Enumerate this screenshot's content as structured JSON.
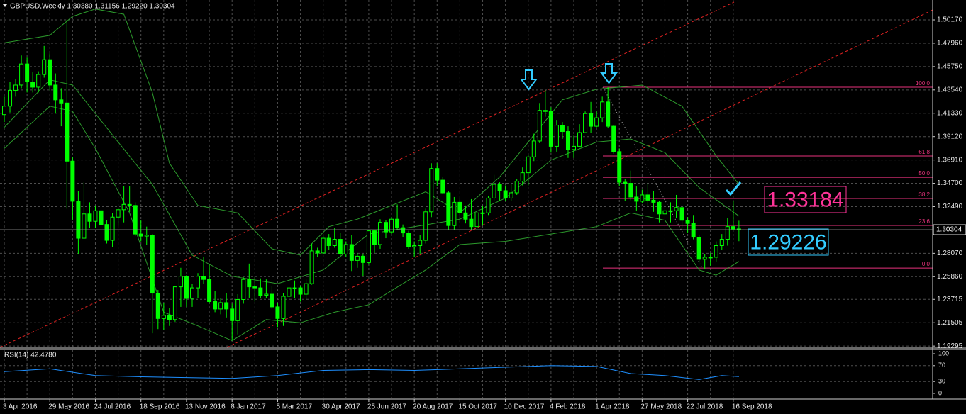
{
  "chart_data": {
    "type": "candlestick",
    "title": "GBPUSD,Weekly  1.30380 1.31156 1.29220 1.30304",
    "categories": [
      "3 Apr 2016",
      null,
      null,
      null,
      null,
      null,
      null,
      null,
      "29 May 2016",
      null,
      null,
      null,
      null,
      null,
      null,
      null,
      "24 Jul 2016",
      null,
      null,
      null,
      null,
      null,
      null,
      null,
      "18 Sep 2016",
      null,
      null,
      null,
      null,
      null,
      null,
      null,
      "13 Nov 2016",
      null,
      null,
      null,
      null,
      null,
      null,
      null,
      "8 Jan 2017",
      null,
      null,
      null,
      null,
      null,
      null,
      null,
      "5 Mar 2017",
      null,
      null,
      null,
      null,
      null,
      null,
      null,
      "30 Apr 2017",
      null,
      null,
      null,
      null,
      null,
      null,
      null,
      "25 Jun 2017",
      null,
      null,
      null,
      null,
      null,
      null,
      null,
      "20 Aug 2017",
      null,
      null,
      null,
      null,
      null,
      null,
      null,
      "15 Oct 2017",
      null,
      null,
      null,
      null,
      null,
      null,
      null,
      "10 Dec 2017",
      null,
      null,
      null,
      null,
      null,
      null,
      null,
      "4 Feb 2018",
      null,
      null,
      null,
      null,
      null,
      null,
      null,
      "1 Apr 2018",
      null,
      null,
      null,
      null,
      null,
      null,
      null,
      "27 May 2018",
      null,
      null,
      null,
      null,
      null,
      null,
      null,
      "22 Jul 2018",
      null,
      null,
      null,
      null,
      null,
      null,
      null,
      "16 Sep 2018",
      null
    ],
    "open": [
      1.412,
      1.42,
      1.435,
      1.44,
      1.46,
      1.443,
      1.438,
      1.45,
      1.464,
      1.44,
      1.426,
      1.423,
      1.368,
      1.33,
      1.295,
      1.318,
      1.311,
      1.321,
      1.308,
      1.293,
      1.315,
      1.322,
      1.327,
      1.326,
      1.299,
      1.297,
      1.298,
      1.243,
      1.219,
      1.222,
      1.218,
      1.249,
      1.259,
      1.238,
      1.248,
      1.259,
      1.256,
      1.235,
      1.228,
      1.234,
      1.228,
      1.217,
      1.237,
      1.256,
      1.249,
      1.248,
      1.241,
      1.242,
      1.23,
      1.219,
      1.24,
      1.248,
      1.248,
      1.242,
      1.252,
      1.283,
      1.281,
      1.295,
      1.288,
      1.294,
      1.28,
      1.289,
      1.274,
      1.278,
      1.272,
      1.302,
      1.289,
      1.31,
      1.301,
      1.313,
      1.305,
      1.3,
      1.287,
      1.288,
      1.293,
      1.32,
      1.361,
      1.35,
      1.338,
      1.307,
      1.329,
      1.319,
      1.313,
      1.306,
      1.319,
      1.319,
      1.333,
      1.346,
      1.34,
      1.333,
      1.338,
      1.349,
      1.357,
      1.372,
      1.387,
      1.416,
      1.415,
      1.382,
      1.402,
      1.396,
      1.379,
      1.382,
      1.395,
      1.413,
      1.401,
      1.409,
      1.424,
      1.401,
      1.377,
      1.348,
      1.347,
      1.334,
      1.33,
      1.336,
      1.331,
      1.329,
      1.318,
      1.321,
      1.321,
      1.324,
      1.312,
      1.309,
      1.296,
      1.275,
      1.277,
      1.277,
      1.288,
      1.294,
      1.306,
      1.3038
    ],
    "high": [
      1.429,
      1.443,
      1.446,
      1.468,
      1.466,
      1.452,
      1.453,
      1.477,
      1.47,
      1.451,
      1.437,
      1.502,
      1.372,
      1.34,
      1.348,
      1.329,
      1.326,
      1.337,
      1.312,
      1.319,
      1.324,
      1.344,
      1.344,
      1.329,
      1.312,
      1.306,
      1.299,
      1.246,
      1.234,
      1.229,
      1.25,
      1.267,
      1.26,
      1.252,
      1.262,
      1.277,
      1.27,
      1.245,
      1.238,
      1.243,
      1.233,
      1.242,
      1.258,
      1.271,
      1.258,
      1.257,
      1.256,
      1.25,
      1.234,
      1.243,
      1.252,
      1.255,
      1.25,
      1.256,
      1.29,
      1.286,
      1.297,
      1.299,
      1.305,
      1.3,
      1.292,
      1.298,
      1.281,
      1.28,
      1.303,
      1.303,
      1.313,
      1.312,
      1.315,
      1.327,
      1.308,
      1.302,
      1.292,
      1.298,
      1.323,
      1.366,
      1.366,
      1.353,
      1.34,
      1.334,
      1.333,
      1.326,
      1.332,
      1.322,
      1.326,
      1.335,
      1.355,
      1.348,
      1.345,
      1.346,
      1.351,
      1.362,
      1.374,
      1.394,
      1.423,
      1.435,
      1.419,
      1.407,
      1.405,
      1.401,
      1.392,
      1.403,
      1.415,
      1.424,
      1.415,
      1.429,
      1.438,
      1.402,
      1.38,
      1.351,
      1.359,
      1.344,
      1.341,
      1.347,
      1.34,
      1.33,
      1.326,
      1.329,
      1.336,
      1.326,
      1.315,
      1.317,
      1.298,
      1.28,
      1.281,
      1.292,
      1.299,
      1.314,
      1.33,
      1.31156
    ],
    "low": [
      1.405,
      1.414,
      1.429,
      1.437,
      1.433,
      1.433,
      1.433,
      1.447,
      1.435,
      1.413,
      1.401,
      1.323,
      1.312,
      1.28,
      1.295,
      1.305,
      1.305,
      1.305,
      1.29,
      1.287,
      1.307,
      1.31,
      1.32,
      1.297,
      1.292,
      1.289,
      1.205,
      1.209,
      1.208,
      1.212,
      1.216,
      1.23,
      1.23,
      1.23,
      1.238,
      1.252,
      1.233,
      1.225,
      1.223,
      1.22,
      1.199,
      1.204,
      1.233,
      1.238,
      1.235,
      1.238,
      1.238,
      1.228,
      1.211,
      1.212,
      1.236,
      1.238,
      1.235,
      1.237,
      1.251,
      1.277,
      1.28,
      1.284,
      1.286,
      1.277,
      1.277,
      1.264,
      1.267,
      1.259,
      1.27,
      1.281,
      1.285,
      1.295,
      1.299,
      1.303,
      1.296,
      1.285,
      1.277,
      1.28,
      1.29,
      1.315,
      1.344,
      1.337,
      1.303,
      1.303,
      1.31,
      1.309,
      1.303,
      1.304,
      1.307,
      1.317,
      1.33,
      1.33,
      1.33,
      1.33,
      1.336,
      1.345,
      1.345,
      1.368,
      1.385,
      1.41,
      1.376,
      1.377,
      1.389,
      1.371,
      1.371,
      1.381,
      1.395,
      1.395,
      1.4,
      1.405,
      1.399,
      1.375,
      1.344,
      1.33,
      1.331,
      1.321,
      1.328,
      1.326,
      1.32,
      1.31,
      1.315,
      1.31,
      1.314,
      1.305,
      1.3,
      1.294,
      1.272,
      1.266,
      1.269,
      1.273,
      1.284,
      1.288,
      1.303,
      1.2922
    ],
    "close": [
      1.42,
      1.435,
      1.44,
      1.46,
      1.443,
      1.438,
      1.45,
      1.464,
      1.44,
      1.426,
      1.423,
      1.368,
      1.33,
      1.295,
      1.318,
      1.311,
      1.321,
      1.308,
      1.293,
      1.315,
      1.322,
      1.327,
      1.326,
      1.299,
      1.297,
      1.298,
      1.243,
      1.219,
      1.222,
      1.218,
      1.249,
      1.259,
      1.238,
      1.248,
      1.259,
      1.256,
      1.235,
      1.228,
      1.234,
      1.228,
      1.217,
      1.237,
      1.256,
      1.249,
      1.248,
      1.241,
      1.242,
      1.23,
      1.219,
      1.24,
      1.248,
      1.248,
      1.242,
      1.252,
      1.283,
      1.281,
      1.295,
      1.288,
      1.294,
      1.28,
      1.289,
      1.274,
      1.278,
      1.272,
      1.302,
      1.289,
      1.31,
      1.301,
      1.313,
      1.305,
      1.3,
      1.287,
      1.288,
      1.293,
      1.32,
      1.361,
      1.35,
      1.338,
      1.307,
      1.329,
      1.319,
      1.313,
      1.306,
      1.319,
      1.319,
      1.333,
      1.346,
      1.34,
      1.333,
      1.338,
      1.349,
      1.357,
      1.372,
      1.387,
      1.416,
      1.415,
      1.382,
      1.402,
      1.396,
      1.379,
      1.382,
      1.395,
      1.413,
      1.401,
      1.409,
      1.424,
      1.401,
      1.377,
      1.348,
      1.347,
      1.334,
      1.33,
      1.336,
      1.331,
      1.329,
      1.318,
      1.321,
      1.321,
      1.324,
      1.312,
      1.309,
      1.296,
      1.275,
      1.277,
      1.277,
      1.288,
      1.294,
      1.306,
      1.3038,
      1.30304
    ],
    "up_color": "#00ff00",
    "down_color": "#00ff00",
    "ylim": [
      1.1917,
      1.5205
    ],
    "yticks": [
      {
        "value": 1.5017,
        "label": "1.50170"
      },
      {
        "value": 1.4796,
        "label": "1.47960"
      },
      {
        "value": 1.4575,
        "label": "1.45750"
      },
      {
        "value": 1.4354,
        "label": "1.43540"
      },
      {
        "value": 1.4133,
        "label": "1.41330"
      },
      {
        "value": 1.3912,
        "label": "1.39120"
      },
      {
        "value": 1.3691,
        "label": "1.36910"
      },
      {
        "value": 1.347,
        "label": "1.34700"
      },
      {
        "value": 1.3249,
        "label": "1.32490"
      },
      {
        "value": 1.2807,
        "label": "1.28070"
      },
      {
        "value": 1.2586,
        "label": "1.25860"
      },
      1.23715,
      1.21505,
      1.19295
    ],
    "grid": true,
    "bands": [
      {
        "color": "#2c9a2c",
        "x": [
          0,
          8,
          12,
          16,
          21,
          26,
          29,
          34,
          41,
          47,
          52,
          57,
          62,
          68,
          74,
          80,
          87,
          92,
          98,
          104,
          112,
          119,
          125,
          129
        ],
        "values": [
          1.48,
          1.487,
          1.505,
          1.512,
          1.507,
          1.433,
          1.366,
          1.326,
          1.319,
          1.285,
          1.279,
          1.306,
          1.313,
          1.326,
          1.339,
          1.319,
          1.353,
          1.386,
          1.426,
          1.436,
          1.44,
          1.42,
          1.373,
          1.346
        ]
      },
      {
        "color": "#2c9a2c",
        "x": [
          0,
          8,
          12,
          20,
          26,
          33,
          40,
          48,
          56,
          64,
          72,
          80,
          88,
          96,
          104,
          110,
          116,
          122,
          129
        ],
        "values": [
          1.4,
          1.445,
          1.44,
          1.386,
          1.346,
          1.279,
          1.259,
          1.252,
          1.265,
          1.299,
          1.306,
          1.313,
          1.333,
          1.369,
          1.386,
          1.389,
          1.376,
          1.343,
          1.316
        ]
      },
      {
        "color": "#2c9a2c",
        "x": [
          0,
          8,
          12,
          16,
          22,
          28,
          34,
          40,
          46,
          52,
          58,
          64,
          70,
          74,
          80,
          88,
          96,
          104,
          110,
          116,
          122,
          125,
          129
        ],
        "values": [
          1.38,
          1.42,
          1.415,
          1.38,
          1.319,
          1.225,
          1.212,
          1.198,
          1.218,
          1.215,
          1.225,
          1.232,
          1.252,
          1.265,
          1.289,
          1.292,
          1.299,
          1.306,
          1.319,
          1.312,
          1.265,
          1.26,
          1.273
        ]
      }
    ],
    "fib_color": "#e8327c",
    "fib_levels": [
      {
        "label": "100.0",
        "value": 1.438
      },
      {
        "label": "61.8",
        "value": 1.3729
      },
      {
        "label": "50.0",
        "value": 1.3527
      },
      {
        "label": "38.2",
        "value": 1.3326
      },
      {
        "label": "23.6",
        "value": 1.3071
      },
      {
        "label": "0.0",
        "value": 1.2668
      }
    ],
    "annotations": [
      {
        "text": "1.33184",
        "color": "#ff3399"
      },
      {
        "text": "1.29226",
        "color": "#33ccff"
      }
    ],
    "rsi": {
      "title": "RSI(14) 42.4780",
      "color": "#1e8fff",
      "x": [
        0,
        8,
        16,
        24,
        32,
        40,
        48,
        56,
        64,
        72,
        80,
        88,
        96,
        104,
        110,
        116,
        122,
        126,
        129
      ],
      "values": [
        55,
        62,
        45,
        42,
        40,
        38,
        45,
        58,
        60,
        58,
        62,
        66,
        70,
        68,
        50,
        45,
        35,
        45,
        42.478
      ],
      "ylim": [
        0,
        100
      ],
      "yticks": [
        100,
        70,
        30,
        0
      ]
    }
  }
}
